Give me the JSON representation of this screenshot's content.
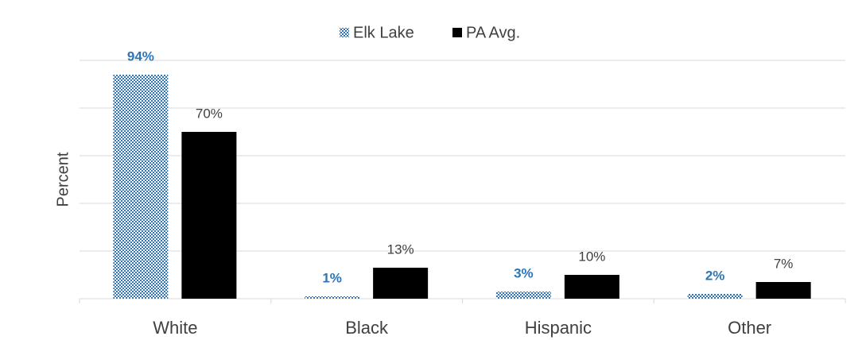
{
  "chart_data": {
    "type": "bar",
    "y_label": "Percent",
    "categories": [
      "White",
      "Black",
      "Hispanic",
      "Other"
    ],
    "series": [
      {
        "name": "Elk Lake",
        "color": "#2e75b6",
        "values": [
          94,
          1,
          3,
          2
        ],
        "value_labels": [
          "94%",
          "1%",
          "3%",
          "2%"
        ]
      },
      {
        "name": "PA Avg.",
        "color": "#000000",
        "values": [
          70,
          13,
          10,
          7
        ],
        "value_labels": [
          "70%",
          "13%",
          "10%",
          "7%"
        ]
      }
    ],
    "ylim": [
      0,
      100
    ],
    "yticks": [
      0,
      20,
      40,
      60,
      80,
      100
    ],
    "grid": true,
    "legend": "top"
  }
}
